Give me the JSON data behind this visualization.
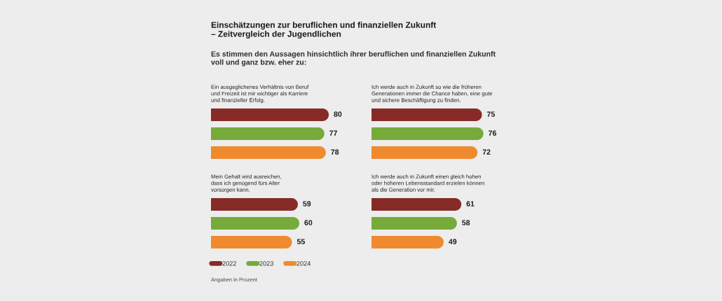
{
  "chart_data": [
    {
      "type": "other",
      "title": "Einschätzungen zur beruflichen und finanziellen Zukunft\n– Zeitvergleich der Jugendlichen",
      "subtitle": "Es stimmen den Aussagen hinsichtlich ihrer beruflichen und finanziellen Zukunft\nvoll und ganz bzw. eher zu:",
      "annotations": [
        "Angaben in Prozent"
      ]
    },
    {
      "type": "bar",
      "orientation": "horizontal",
      "title": "Ein ausgeglichenes Verhältnis von Beruf\nund Freizeit ist mir wichtiger als Karriere\nund finanzieller Erfolg.",
      "categories": [
        null
      ],
      "series": [
        {
          "name": "2022",
          "color": "#862b27",
          "values": [
            80
          ]
        },
        {
          "name": "2023",
          "color": "#76aa3b",
          "values": [
            77
          ]
        },
        {
          "name": "2024",
          "color": "#ef8a2e",
          "values": [
            78
          ]
        }
      ],
      "data_labels": true,
      "tick_labels": false,
      "legend": "bottom left"
    },
    {
      "type": "bar",
      "orientation": "horizontal",
      "title": "Ich werde auch in Zukunft so wie die früheren\nGenerationen immer die Chance haben, eine gute\nund sichere Beschäftigung zu finden.",
      "categories": [
        null
      ],
      "series": [
        {
          "name": "2022",
          "color": "#862b27",
          "values": [
            75
          ]
        },
        {
          "name": "2023",
          "color": "#76aa3b",
          "values": [
            76
          ]
        },
        {
          "name": "2024",
          "color": "#ef8a2e",
          "values": [
            72
          ]
        }
      ],
      "data_labels": true,
      "tick_labels": false
    },
    {
      "type": "bar",
      "orientation": "horizontal",
      "title": "Mein Gehalt wird ausreichen,\ndass ich genügend fürs Alter\nvorsorgen kann.",
      "categories": [
        null
      ],
      "series": [
        {
          "name": "2022",
          "color": "#862b27",
          "values": [
            59
          ]
        },
        {
          "name": "2023",
          "color": "#76aa3b",
          "values": [
            60
          ]
        },
        {
          "name": "2024",
          "color": "#ef8a2e",
          "values": [
            55
          ]
        }
      ],
      "data_labels": true,
      "tick_labels": false
    },
    {
      "type": "bar",
      "orientation": "horizontal",
      "title": "Ich werde auch in Zukunft einen gleich hohen\noder höheren Lebensstandard erzielen können\nals die Generation vor mir.",
      "categories": [
        null
      ],
      "series": [
        {
          "name": "2022",
          "color": "#862b27",
          "values": [
            61
          ]
        },
        {
          "name": "2023",
          "color": "#76aa3b",
          "values": [
            58
          ]
        },
        {
          "name": "2024",
          "color": "#ef8a2e",
          "values": [
            49
          ]
        }
      ],
      "data_labels": true,
      "tick_labels": false
    }
  ]
}
